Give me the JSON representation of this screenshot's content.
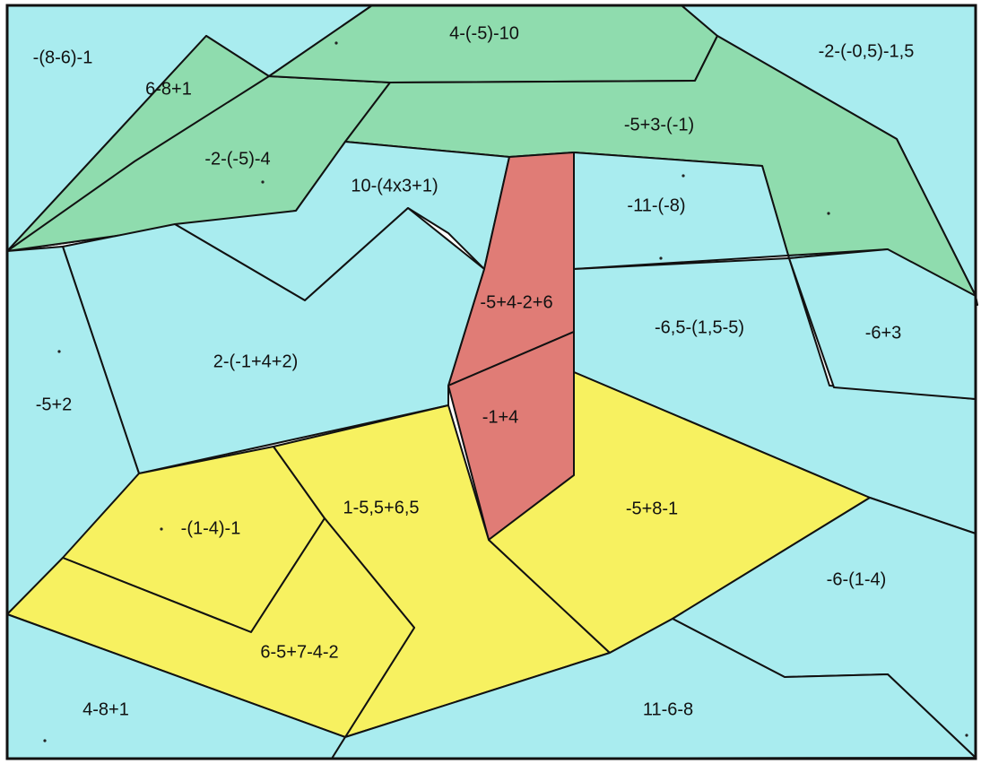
{
  "palette": {
    "water": "#a9ecef",
    "leaves": "#8fdcae",
    "sand": "#f7f160",
    "trunk": "#e07c76",
    "outline": "#111111"
  },
  "regions": [
    {
      "name": "region-sky-top-left",
      "color": "water",
      "label": "-(8-6)-1"
    },
    {
      "name": "region-leaf-upper-left",
      "color": "leaves",
      "label": "6-8+1"
    },
    {
      "name": "region-leaf-lower-left",
      "color": "leaves",
      "label": "-2-(-5)-4"
    },
    {
      "name": "region-leaf-top-center",
      "color": "leaves",
      "label": "4-(-5)-10"
    },
    {
      "name": "region-sky-top-right",
      "color": "water",
      "label": "-2-(-0,5)-1,5"
    },
    {
      "name": "region-leaf-right",
      "color": "leaves",
      "label": "-5+3-(-1)"
    },
    {
      "name": "region-sky-center",
      "color": "water",
      "label": "10-(4x3+1)"
    },
    {
      "name": "region-sky-right-upper",
      "color": "water",
      "label": "-11-(-8)"
    },
    {
      "name": "region-trunk-upper",
      "color": "trunk",
      "label": "-5+4-2+6"
    },
    {
      "name": "region-sky-right-middle",
      "color": "water",
      "label": "-6,5-(1,5-5)"
    },
    {
      "name": "region-sky-far-right",
      "color": "water",
      "label": "-6+3"
    },
    {
      "name": "region-sky-left-middle",
      "color": "water",
      "label": "2-(-1+4+2)"
    },
    {
      "name": "region-sky-left-edge",
      "color": "water",
      "label": "-5+2"
    },
    {
      "name": "region-trunk-lower",
      "color": "trunk",
      "label": "-1+4"
    },
    {
      "name": "region-sand-left",
      "color": "sand",
      "label": "-(1-4)-1"
    },
    {
      "name": "region-sand-center",
      "color": "sand",
      "label": "1-5,5+6,5"
    },
    {
      "name": "region-sand-right",
      "color": "sand",
      "label": "-5+8-1"
    },
    {
      "name": "region-water-right",
      "color": "water",
      "label": "-6-(1-4)"
    },
    {
      "name": "region-sand-bottom-left",
      "color": "sand",
      "label": "6-5+7-4-2"
    },
    {
      "name": "region-water-bottom-left",
      "color": "water",
      "label": "4-8+1"
    },
    {
      "name": "region-water-bottom-right",
      "color": "water",
      "label": "11-6-8"
    }
  ]
}
